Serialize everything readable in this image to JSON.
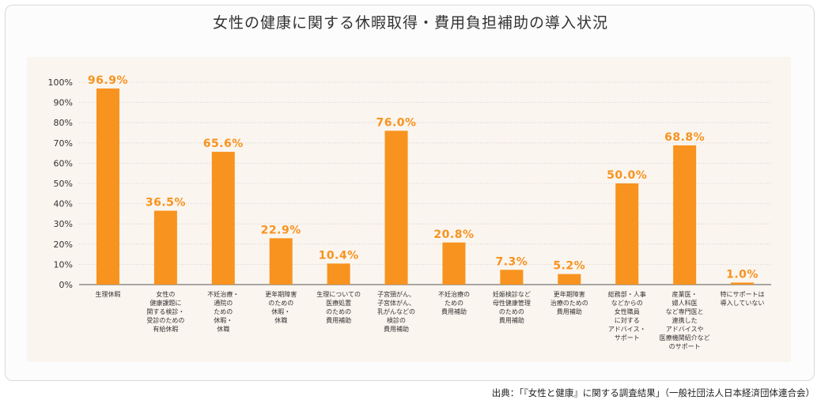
{
  "title": "女性の健康に関する休暇取得・費用負担補助の導入状況",
  "source": "出典：「『女性と健康』に関する調査結果」（一般社団法人日本経済団体連合会）",
  "colors": {
    "bar": "#f7931e",
    "label": "#f7931e",
    "axis_text": "#333333",
    "grid": "#c8c8c8",
    "panel": "#fbf5ef"
  },
  "chart_data": {
    "type": "bar",
    "title": "女性の健康に関する休暇取得・費用負担補助の導入状況",
    "ylim": [
      0,
      100
    ],
    "yticks": [
      "0%",
      "10%",
      "20%",
      "30%",
      "40%",
      "50%",
      "60%",
      "70%",
      "80%",
      "90%",
      "100%"
    ],
    "grid": true,
    "categories": [
      [
        "生理休暇"
      ],
      [
        "女性の",
        "健康課題に",
        "関する検診・",
        "受診のための",
        "有給休暇"
      ],
      [
        "不妊治療・",
        "通院の",
        "ための",
        "休暇・",
        "休職"
      ],
      [
        "更年期障害",
        "のための",
        "休暇・",
        "休職"
      ],
      [
        "生理についての",
        "医療処置",
        "のための",
        "費用補助"
      ],
      [
        "子宮頸がん、",
        "子宮体がん、",
        "乳がんなどの",
        "検診の",
        "費用補助"
      ],
      [
        "不妊治療の",
        "ための",
        "費用補助"
      ],
      [
        "妊娠検診など",
        "母性健康管理",
        "のための",
        "費用補助"
      ],
      [
        "更年期障害",
        "治療のための",
        "費用補助"
      ],
      [
        "総務部・人事",
        "などからの",
        "女性職員",
        "に対する",
        "アドバイス・",
        "サポート"
      ],
      [
        "産業医・",
        "婦人科医",
        "など専門医と",
        "連携した",
        "アドバイスや",
        "医療機関紹介など",
        "のサポート"
      ],
      [
        "特にサポートは",
        "導入していない"
      ]
    ],
    "values": [
      96.9,
      36.5,
      65.6,
      22.9,
      10.4,
      76.0,
      20.8,
      7.3,
      5.2,
      50.0,
      68.8,
      1.0
    ],
    "value_labels": [
      "96.9%",
      "36.5%",
      "65.6%",
      "22.9%",
      "10.4%",
      "76.0%",
      "20.8%",
      "7.3%",
      "5.2%",
      "50.0%",
      "68.8%",
      "1.0%"
    ]
  }
}
